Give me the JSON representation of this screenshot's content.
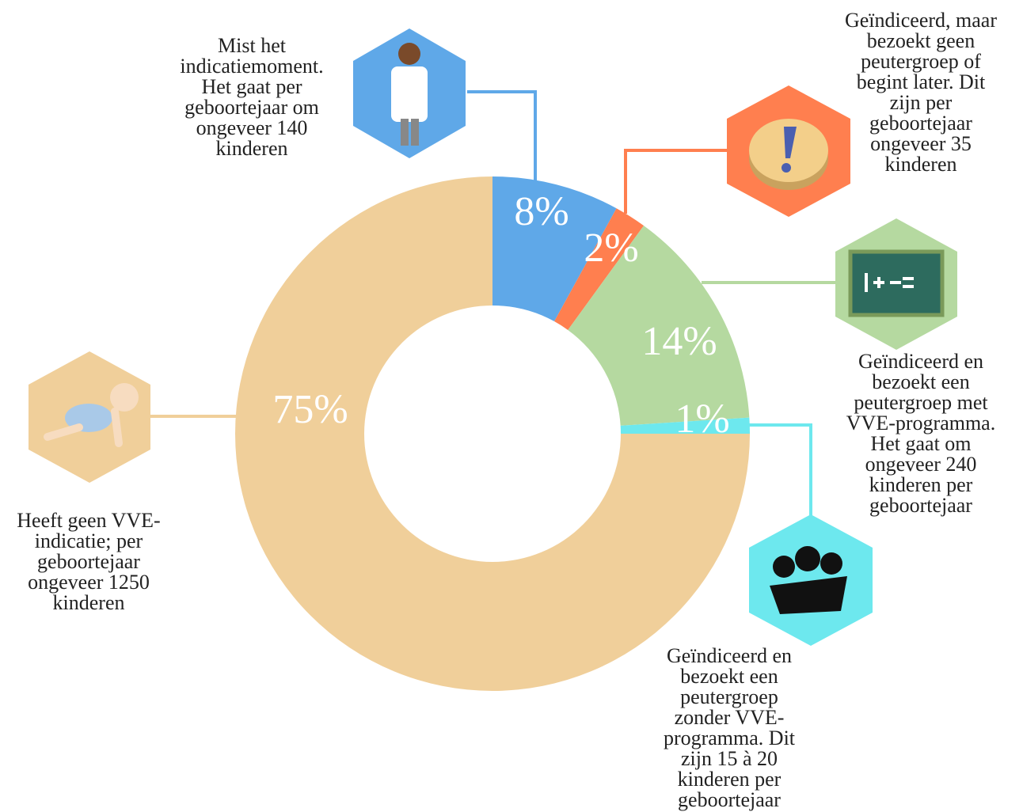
{
  "chart_data": {
    "type": "pie",
    "donut": true,
    "values": [
      8,
      2,
      14,
      1,
      75
    ],
    "value_labels": [
      "8%",
      "2%",
      "14%",
      "1%",
      "75%"
    ],
    "colors": [
      "#5fa8e8",
      "#ff7f4f",
      "#b5d9a0",
      "#6de8ee",
      "#f0cf9a"
    ],
    "annotations": [
      [
        "Mist het",
        "indicatiemoment.",
        "Het gaat per",
        "geboortejaar om",
        "ongeveer 140",
        "kinderen"
      ],
      [
        "Geïndiceerd, maar",
        "bezoekt geen",
        "peutergroep of",
        "begint later. Dit",
        "zijn per",
        "geboortejaar",
        "ongeveer 35",
        "kinderen"
      ],
      [
        "Geïndiceerd en",
        "bezoekt een",
        "peutergroep met",
        "VVE-programma.",
        "Het gaat om",
        "ongeveer 240",
        "kinderen per",
        "geboortejaar"
      ],
      [
        "Geïndiceerd en",
        "bezoekt een",
        "peutergroep",
        "zonder VVE-",
        "programma. Dit",
        "zijn 15 à 20",
        "kinderen per",
        "geboortejaar"
      ],
      [
        "Heeft geen VVE-",
        "indicatie; per",
        "geboortejaar",
        "ongeveer 1250",
        "kinderen"
      ]
    ]
  }
}
